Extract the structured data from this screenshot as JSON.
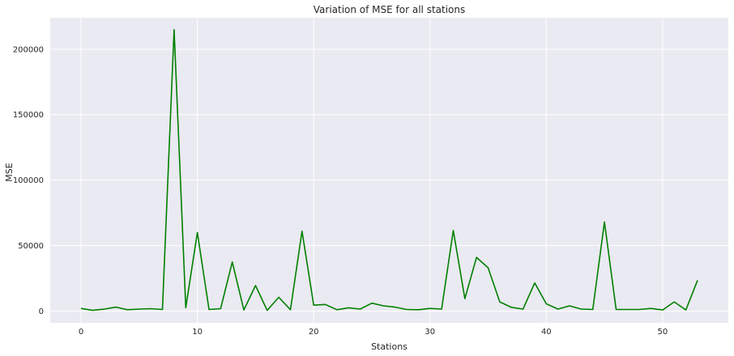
{
  "chart_data": {
    "type": "line",
    "title": "Variation of MSE for all stations",
    "xlabel": "Stations",
    "ylabel": "MSE",
    "xlim": [
      -2.65,
      55.65
    ],
    "ylim": [
      -9000,
      224000
    ],
    "xticks": [
      0,
      10,
      20,
      30,
      40,
      50
    ],
    "yticks": [
      0,
      50000,
      100000,
      150000,
      200000
    ],
    "grid": true,
    "line_color": "#008000",
    "series": [
      {
        "x": [
          0,
          1,
          2,
          3,
          4,
          5,
          6,
          7,
          8,
          9,
          10,
          11,
          12,
          13,
          14,
          15,
          16,
          17,
          18,
          19,
          20,
          21,
          22,
          23,
          24,
          25,
          26,
          27,
          28,
          29,
          30,
          31,
          32,
          33,
          34,
          35,
          36,
          37,
          38,
          39,
          40,
          41,
          42,
          43,
          44,
          45,
          46,
          47,
          48,
          49,
          50,
          51,
          52,
          53
        ],
        "values": [
          2000,
          500,
          1500,
          3000,
          1000,
          1500,
          1800,
          1200,
          215000,
          2500,
          60000,
          1200,
          1800,
          37500,
          800,
          19500,
          500,
          10500,
          1000,
          61000,
          4500,
          5000,
          1000,
          2500,
          1500,
          6000,
          4000,
          3000,
          1200,
          1000,
          2000,
          1500,
          61500,
          9500,
          41000,
          33000,
          7000,
          2800,
          1500,
          21500,
          5500,
          1500,
          4000,
          1500,
          1200,
          68000,
          1200,
          1200,
          1200,
          2000,
          800,
          7000,
          800,
          23500
        ]
      }
    ]
  }
}
